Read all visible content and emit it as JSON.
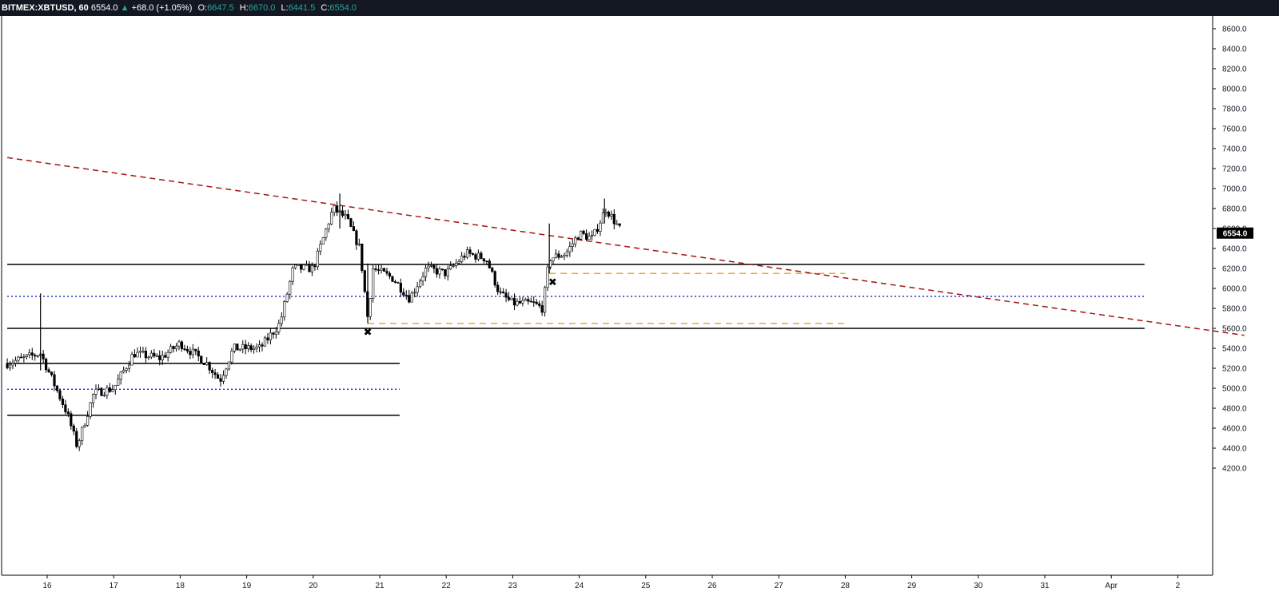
{
  "header": {
    "symbol": "BITMEX:XBTUSD, 60",
    "last": "6554.0",
    "change_arrow": "▲",
    "change": "+68.0 (+1.05%)",
    "open_label": "O:",
    "open": "6647.5",
    "high_label": "H:",
    "high": "6670.0",
    "low_label": "L:",
    "low": "6441.5",
    "close_label": "C:",
    "close": "6554.0"
  },
  "colors": {
    "up": "#26a69a",
    "candle_body_up": "#ffffff",
    "candle_body_down": "#000000",
    "trendline": "#a31515",
    "support": "#000000",
    "dotted": "#1f2bd6",
    "dashed_orange": "#f5a623",
    "price_tag": "#000000"
  },
  "chart_data": {
    "type": "candlestick",
    "title": "",
    "xlabel": "",
    "ylabel": "",
    "ylim": [
      4000,
      8700
    ],
    "y_ticks": [
      "8600.0",
      "8400.0",
      "8200.0",
      "8000.0",
      "7800.0",
      "7600.0",
      "7400.0",
      "7200.0",
      "7000.0",
      "6800.0",
      "6600.0",
      "6400.0",
      "6200.0",
      "6000.0",
      "5800.0",
      "5600.0",
      "5400.0",
      "5200.0",
      "5000.0",
      "4800.0",
      "4600.0",
      "4400.0",
      "4200.0"
    ],
    "x_ticks": [
      "16",
      "17",
      "18",
      "19",
      "20",
      "21",
      "22",
      "23",
      "24",
      "25",
      "26",
      "27",
      "28",
      "29",
      "30",
      "31",
      "Apr",
      "2"
    ],
    "last_price_label": "6554.0",
    "last_price": 6554,
    "days_visible": [
      15.4,
      34.0
    ],
    "key_points": [
      {
        "day": 15.4,
        "price": 5250
      },
      {
        "day": 15.9,
        "price": 5350
      },
      {
        "day": 16.3,
        "price": 4750
      },
      {
        "day": 16.45,
        "price": 4420
      },
      {
        "day": 16.7,
        "price": 4950
      },
      {
        "day": 17.0,
        "price": 5000
      },
      {
        "day": 17.3,
        "price": 5350
      },
      {
        "day": 17.7,
        "price": 5300
      },
      {
        "day": 18.0,
        "price": 5450
      },
      {
        "day": 18.4,
        "price": 5250
      },
      {
        "day": 18.6,
        "price": 5080
      },
      {
        "day": 18.8,
        "price": 5400
      },
      {
        "day": 19.2,
        "price": 5400
      },
      {
        "day": 19.5,
        "price": 5650
      },
      {
        "day": 19.7,
        "price": 6200
      },
      {
        "day": 20.0,
        "price": 6200
      },
      {
        "day": 20.3,
        "price": 6800
      },
      {
        "day": 20.5,
        "price": 6700
      },
      {
        "day": 20.7,
        "price": 6400
      },
      {
        "day": 20.82,
        "price": 5700
      },
      {
        "day": 20.9,
        "price": 6200
      },
      {
        "day": 21.2,
        "price": 6100
      },
      {
        "day": 21.45,
        "price": 5900
      },
      {
        "day": 21.7,
        "price": 6200
      },
      {
        "day": 22.0,
        "price": 6150
      },
      {
        "day": 22.3,
        "price": 6350
      },
      {
        "day": 22.6,
        "price": 6300
      },
      {
        "day": 22.8,
        "price": 5950
      },
      {
        "day": 23.0,
        "price": 5850
      },
      {
        "day": 23.3,
        "price": 5850
      },
      {
        "day": 23.45,
        "price": 5800
      },
      {
        "day": 23.55,
        "price": 6300
      },
      {
        "day": 23.8,
        "price": 6350
      },
      {
        "day": 24.0,
        "price": 6550
      },
      {
        "day": 24.2,
        "price": 6500
      },
      {
        "day": 24.4,
        "price": 6800
      },
      {
        "day": 24.65,
        "price": 6554
      }
    ],
    "horizontal_lines": [
      {
        "name": "support-6240",
        "price": 6240,
        "from_day": 15.4,
        "to_day": 32.5,
        "style": "solid"
      },
      {
        "name": "support-5600",
        "price": 5600,
        "from_day": 15.4,
        "to_day": 32.5,
        "style": "solid"
      },
      {
        "name": "support-5250",
        "price": 5250,
        "from_day": 15.4,
        "to_day": 21.3,
        "style": "solid"
      },
      {
        "name": "support-4730",
        "price": 4730,
        "from_day": 15.4,
        "to_day": 21.3,
        "style": "solid"
      },
      {
        "name": "dotted-5920",
        "price": 5920,
        "from_day": 15.4,
        "to_day": 32.5,
        "style": "dotted"
      },
      {
        "name": "dotted-4990",
        "price": 4990,
        "from_day": 15.4,
        "to_day": 21.3,
        "style": "dotted"
      },
      {
        "name": "orange-6150",
        "price": 6150,
        "from_day": 23.55,
        "to_day": 28.0,
        "style": "dashed"
      },
      {
        "name": "orange-5650",
        "price": 5650,
        "from_day": 20.82,
        "to_day": 28.0,
        "style": "dashed"
      }
    ],
    "trendline": {
      "from": {
        "day": 15.4,
        "price": 7310
      },
      "to": {
        "day": 34.0,
        "price": 5530
      }
    },
    "markers": [
      {
        "name": "x-marker-low",
        "day": 20.82,
        "price": 5570,
        "symbol": "✖"
      },
      {
        "name": "x-marker-breakout",
        "day": 23.6,
        "price": 6070,
        "symbol": "✖"
      }
    ]
  }
}
